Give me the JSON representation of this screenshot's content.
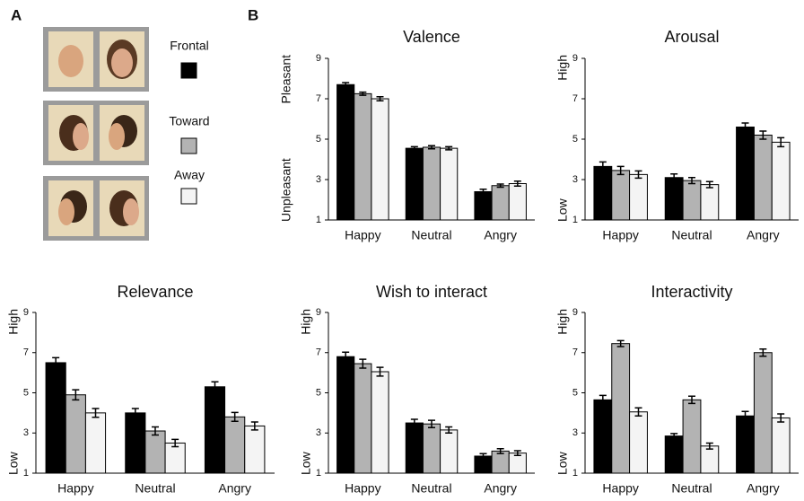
{
  "panel_labels": [
    "A",
    "B"
  ],
  "legend": [
    {
      "name": "Frontal",
      "color": "#000000"
    },
    {
      "name": "Toward",
      "color": "#b3b3b3"
    },
    {
      "name": "Away",
      "color": "#f4f4f4"
    }
  ],
  "chart_data": [
    {
      "type": "bar",
      "title": "Valence",
      "categories": [
        "Happy",
        "Neutral",
        "Angry"
      ],
      "series": [
        {
          "values": [
            7.7,
            4.55,
            2.4
          ],
          "errors": [
            0.1,
            0.08,
            0.12
          ]
        },
        {
          "values": [
            7.25,
            4.6,
            2.7
          ],
          "errors": [
            0.08,
            0.08,
            0.08
          ]
        },
        {
          "values": [
            7.0,
            4.55,
            2.8
          ],
          "errors": [
            0.1,
            0.08,
            0.12
          ]
        }
      ],
      "ylim": [
        1,
        9
      ],
      "yticks": [
        1,
        3,
        5,
        7,
        9
      ],
      "y_label_top": "Pleasant",
      "y_label_bottom": "Unpleasant"
    },
    {
      "type": "bar",
      "title": "Arousal",
      "categories": [
        "Happy",
        "Neutral",
        "Angry"
      ],
      "series": [
        {
          "values": [
            3.65,
            3.1,
            5.6
          ],
          "errors": [
            0.22,
            0.18,
            0.2
          ]
        },
        {
          "values": [
            3.45,
            2.95,
            5.2
          ],
          "errors": [
            0.2,
            0.15,
            0.2
          ]
        },
        {
          "values": [
            3.25,
            2.75,
            4.85
          ],
          "errors": [
            0.18,
            0.15,
            0.22
          ]
        }
      ],
      "ylim": [
        1,
        9
      ],
      "yticks": [
        1,
        3,
        5,
        7,
        9
      ],
      "y_label_top": "High",
      "y_label_bottom": "Low"
    },
    {
      "type": "bar",
      "title": "Relevance",
      "categories": [
        "Happy",
        "Neutral",
        "Angry"
      ],
      "series": [
        {
          "values": [
            6.5,
            4.0,
            5.3
          ],
          "errors": [
            0.25,
            0.22,
            0.25
          ]
        },
        {
          "values": [
            4.9,
            3.1,
            3.8
          ],
          "errors": [
            0.25,
            0.2,
            0.22
          ]
        },
        {
          "values": [
            4.0,
            2.5,
            3.35
          ],
          "errors": [
            0.22,
            0.18,
            0.2
          ]
        }
      ],
      "ylim": [
        1,
        9
      ],
      "yticks": [
        1,
        3,
        5,
        7,
        9
      ],
      "y_label_top": "High",
      "y_label_bottom": "Low"
    },
    {
      "type": "bar",
      "title": "Wish to interact",
      "categories": [
        "Happy",
        "Neutral",
        "Angry"
      ],
      "series": [
        {
          "values": [
            6.8,
            3.5,
            1.85
          ],
          "errors": [
            0.22,
            0.18,
            0.12
          ]
        },
        {
          "values": [
            6.45,
            3.45,
            2.1
          ],
          "errors": [
            0.22,
            0.18,
            0.12
          ]
        },
        {
          "values": [
            6.05,
            3.15,
            2.0
          ],
          "errors": [
            0.22,
            0.15,
            0.12
          ]
        }
      ],
      "ylim": [
        1,
        9
      ],
      "yticks": [
        1,
        3,
        5,
        7,
        9
      ],
      "y_label_top": "High",
      "y_label_bottom": "Low"
    },
    {
      "type": "bar",
      "title": "Interactivity",
      "categories": [
        "Happy",
        "Neutral",
        "Angry"
      ],
      "series": [
        {
          "values": [
            4.65,
            2.85,
            3.85
          ],
          "errors": [
            0.22,
            0.12,
            0.22
          ]
        },
        {
          "values": [
            7.45,
            4.65,
            7.0
          ],
          "errors": [
            0.15,
            0.18,
            0.18
          ]
        },
        {
          "values": [
            4.05,
            2.35,
            3.75
          ],
          "errors": [
            0.2,
            0.15,
            0.2
          ]
        }
      ],
      "ylim": [
        1,
        9
      ],
      "yticks": [
        1,
        3,
        5,
        7,
        9
      ],
      "y_label_top": "High",
      "y_label_bottom": "Low"
    }
  ]
}
